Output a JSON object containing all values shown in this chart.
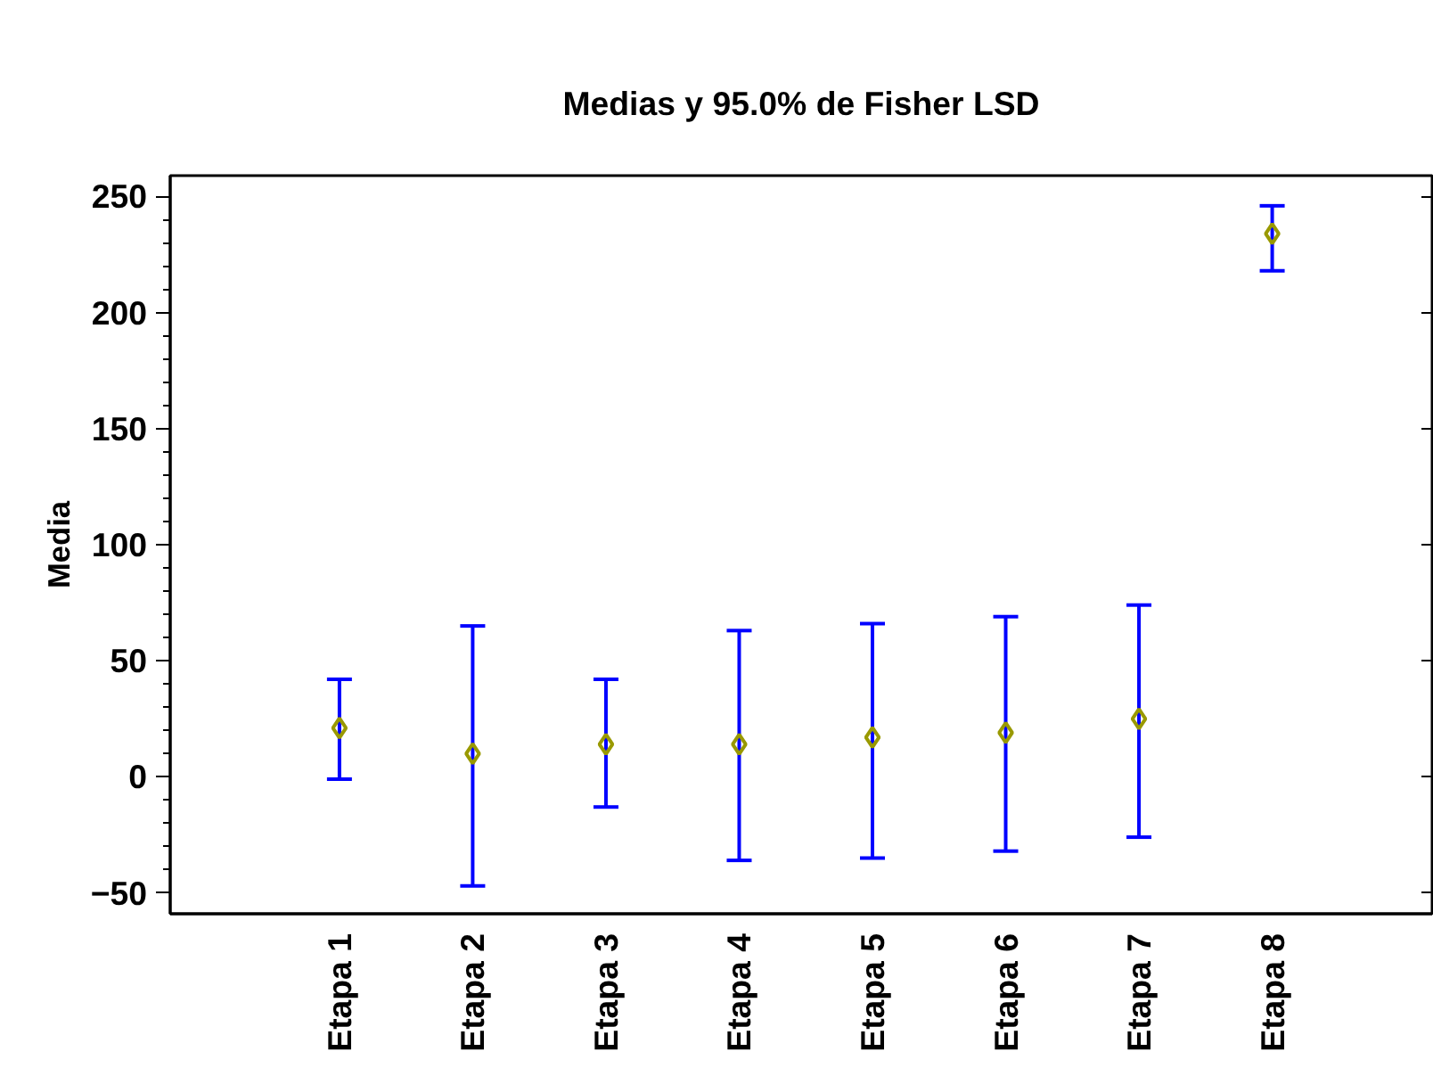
{
  "chart_data": {
    "type": "scatter",
    "title": "Medias y 95.0% de Fisher LSD",
    "ylabel": "Media",
    "categories": [
      "Etapa 1",
      "Etapa 2",
      "Etapa 3",
      "Etapa 4",
      "Etapa 5",
      "Etapa 6",
      "Etapa 7",
      "Etapa 8"
    ],
    "series": [
      {
        "color": "#999900",
        "values": [
          21,
          10,
          14,
          14,
          17,
          19,
          25,
          234
        ],
        "errors": [
          [
            -1,
            42
          ],
          [
            -47,
            65
          ],
          [
            -13,
            42
          ],
          [
            -36,
            63
          ],
          [
            -35,
            66
          ],
          [
            -32,
            69
          ],
          [
            -26,
            74
          ],
          [
            218,
            246
          ]
        ]
      }
    ],
    "marker": "diamond",
    "ylim": [
      -59,
      259
    ],
    "yticks": [
      -50,
      0,
      50,
      100,
      150,
      200,
      250
    ],
    "grid": false
  }
}
